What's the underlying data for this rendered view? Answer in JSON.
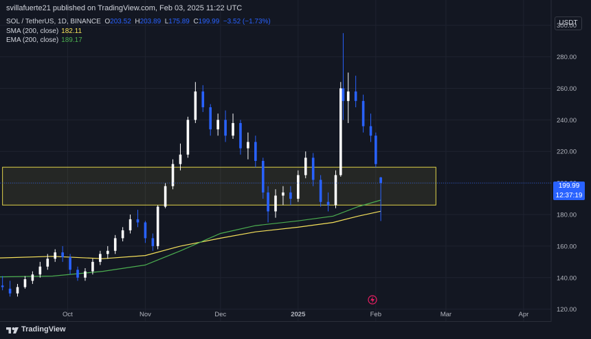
{
  "header": {
    "published": "svillafuerte21 published on TradingView.com, Feb 03, 2025 11:22 UTC"
  },
  "legend": {
    "symbol": "SOL / TetherUS, 1D, BINANCE",
    "open_label": "O",
    "open": "203.52",
    "high_label": "H",
    "high": "203.89",
    "low_label": "L",
    "low": "175.89",
    "close_label": "C",
    "close": "199.99",
    "change": "−3.52 (−1.73%)",
    "sma_label": "SMA (200, close)",
    "sma_value": "182.11",
    "ema_label": "EMA (200, close)",
    "ema_value": "189.17"
  },
  "quote_currency": "USDT",
  "price_tag": {
    "price": "199.99",
    "countdown": "12:37:19"
  },
  "footer": {
    "brand": "TradingView"
  },
  "colors": {
    "bg": "#131722",
    "up": "#ffffff",
    "down": "#2962ff",
    "sma": "#f7e25b",
    "ema": "#4caf50",
    "zone": "#e2d44a",
    "grid": "#1f2330",
    "axis": "#b2b5be"
  },
  "icons": {
    "flash": "lightning-icon",
    "logo": "tradingview-logo-icon"
  },
  "chart_data": {
    "type": "candlestick",
    "y_ticks": [
      120,
      140,
      160,
      180,
      200,
      220,
      240,
      260,
      280,
      300
    ],
    "y_tick_labels": [
      "120.00",
      "140.00",
      "160.00",
      "180.00",
      "200.00",
      "220.00",
      "240.00",
      "260.00",
      "280.00",
      "300.00"
    ],
    "ylim": [
      112,
      316
    ],
    "x_tick_labels": [
      {
        "label": "Oct",
        "date": "2024-10-01"
      },
      {
        "label": "Nov",
        "date": "2024-11-01"
      },
      {
        "label": "Dec",
        "date": "2024-12-01"
      },
      {
        "label": "2025",
        "date": "2025-01-01"
      },
      {
        "label": "Feb",
        "date": "2025-02-01"
      },
      {
        "label": "Mar",
        "date": "2025-03-01"
      },
      {
        "label": "Apr",
        "date": "2025-04-01"
      }
    ],
    "xlim": [
      "2024-09-04",
      "2025-04-12"
    ],
    "horizontal_zone": {
      "low": 186,
      "high": 210
    },
    "last_price": 199.99,
    "candles": [
      {
        "date": "2024-09-05",
        "o": 135,
        "h": 141,
        "l": 132,
        "c": 134
      },
      {
        "date": "2024-09-08",
        "o": 133,
        "h": 138,
        "l": 128,
        "c": 130
      },
      {
        "date": "2024-09-11",
        "o": 130,
        "h": 136,
        "l": 128,
        "c": 134
      },
      {
        "date": "2024-09-14",
        "o": 134,
        "h": 141,
        "l": 133,
        "c": 139
      },
      {
        "date": "2024-09-17",
        "o": 138,
        "h": 144,
        "l": 136,
        "c": 142
      },
      {
        "date": "2024-09-20",
        "o": 142,
        "h": 150,
        "l": 140,
        "c": 147
      },
      {
        "date": "2024-09-23",
        "o": 147,
        "h": 155,
        "l": 145,
        "c": 152
      },
      {
        "date": "2024-09-26",
        "o": 152,
        "h": 158,
        "l": 150,
        "c": 156
      },
      {
        "date": "2024-09-29",
        "o": 156,
        "h": 160,
        "l": 150,
        "c": 153
      },
      {
        "date": "2024-10-02",
        "o": 153,
        "h": 155,
        "l": 142,
        "c": 145
      },
      {
        "date": "2024-10-05",
        "o": 145,
        "h": 147,
        "l": 138,
        "c": 140
      },
      {
        "date": "2024-10-08",
        "o": 140,
        "h": 146,
        "l": 138,
        "c": 144
      },
      {
        "date": "2024-10-11",
        "o": 144,
        "h": 152,
        "l": 142,
        "c": 150
      },
      {
        "date": "2024-10-14",
        "o": 150,
        "h": 157,
        "l": 148,
        "c": 155
      },
      {
        "date": "2024-10-17",
        "o": 155,
        "h": 160,
        "l": 152,
        "c": 157
      },
      {
        "date": "2024-10-20",
        "o": 157,
        "h": 167,
        "l": 155,
        "c": 165
      },
      {
        "date": "2024-10-23",
        "o": 165,
        "h": 172,
        "l": 163,
        "c": 170
      },
      {
        "date": "2024-10-26",
        "o": 170,
        "h": 180,
        "l": 168,
        "c": 177
      },
      {
        "date": "2024-10-29",
        "o": 177,
        "h": 183,
        "l": 172,
        "c": 175
      },
      {
        "date": "2024-11-01",
        "o": 175,
        "h": 176,
        "l": 162,
        "c": 165
      },
      {
        "date": "2024-11-04",
        "o": 165,
        "h": 168,
        "l": 157,
        "c": 160
      },
      {
        "date": "2024-11-06",
        "o": 160,
        "h": 186,
        "l": 158,
        "c": 185
      },
      {
        "date": "2024-11-09",
        "o": 185,
        "h": 200,
        "l": 184,
        "c": 198
      },
      {
        "date": "2024-11-12",
        "o": 198,
        "h": 215,
        "l": 196,
        "c": 212
      },
      {
        "date": "2024-11-15",
        "o": 212,
        "h": 225,
        "l": 208,
        "c": 218
      },
      {
        "date": "2024-11-18",
        "o": 218,
        "h": 242,
        "l": 216,
        "c": 240
      },
      {
        "date": "2024-11-21",
        "o": 240,
        "h": 264,
        "l": 238,
        "c": 258
      },
      {
        "date": "2024-11-24",
        "o": 258,
        "h": 262,
        "l": 245,
        "c": 248
      },
      {
        "date": "2024-11-27",
        "o": 248,
        "h": 250,
        "l": 230,
        "c": 234
      },
      {
        "date": "2024-11-30",
        "o": 234,
        "h": 244,
        "l": 230,
        "c": 240
      },
      {
        "date": "2024-12-03",
        "o": 240,
        "h": 246,
        "l": 226,
        "c": 230
      },
      {
        "date": "2024-12-06",
        "o": 230,
        "h": 244,
        "l": 228,
        "c": 238
      },
      {
        "date": "2024-12-09",
        "o": 238,
        "h": 240,
        "l": 218,
        "c": 222
      },
      {
        "date": "2024-12-12",
        "o": 222,
        "h": 232,
        "l": 215,
        "c": 226
      },
      {
        "date": "2024-12-15",
        "o": 226,
        "h": 230,
        "l": 210,
        "c": 214
      },
      {
        "date": "2024-12-18",
        "o": 214,
        "h": 216,
        "l": 190,
        "c": 194
      },
      {
        "date": "2024-12-20",
        "o": 194,
        "h": 198,
        "l": 175,
        "c": 182
      },
      {
        "date": "2024-12-23",
        "o": 182,
        "h": 196,
        "l": 178,
        "c": 192
      },
      {
        "date": "2024-12-26",
        "o": 192,
        "h": 198,
        "l": 186,
        "c": 194
      },
      {
        "date": "2024-12-29",
        "o": 194,
        "h": 198,
        "l": 186,
        "c": 190
      },
      {
        "date": "2025-01-01",
        "o": 190,
        "h": 208,
        "l": 188,
        "c": 205
      },
      {
        "date": "2025-01-04",
        "o": 205,
        "h": 220,
        "l": 203,
        "c": 216
      },
      {
        "date": "2025-01-07",
        "o": 216,
        "h": 219,
        "l": 198,
        "c": 202
      },
      {
        "date": "2025-01-10",
        "o": 202,
        "h": 205,
        "l": 185,
        "c": 188
      },
      {
        "date": "2025-01-13",
        "o": 188,
        "h": 194,
        "l": 182,
        "c": 186
      },
      {
        "date": "2025-01-16",
        "o": 186,
        "h": 208,
        "l": 184,
        "c": 205
      },
      {
        "date": "2025-01-18",
        "o": 205,
        "h": 264,
        "l": 204,
        "c": 260
      },
      {
        "date": "2025-01-19",
        "o": 260,
        "h": 295,
        "l": 240,
        "c": 252
      },
      {
        "date": "2025-01-21",
        "o": 252,
        "h": 270,
        "l": 238,
        "c": 258
      },
      {
        "date": "2025-01-24",
        "o": 258,
        "h": 268,
        "l": 248,
        "c": 252
      },
      {
        "date": "2025-01-27",
        "o": 252,
        "h": 256,
        "l": 232,
        "c": 236
      },
      {
        "date": "2025-01-30",
        "o": 236,
        "h": 244,
        "l": 226,
        "c": 230
      },
      {
        "date": "2025-02-01",
        "o": 230,
        "h": 232,
        "l": 210,
        "c": 212
      },
      {
        "date": "2025-02-03",
        "o": 203.52,
        "h": 203.89,
        "l": 175.89,
        "c": 199.99
      }
    ],
    "series": [
      {
        "name": "SMA (200, close)",
        "color": "#f7e25b",
        "points": [
          [
            "2024-09-04",
            152.5
          ],
          [
            "2024-09-25",
            153.5
          ],
          [
            "2024-10-15",
            152
          ],
          [
            "2024-11-01",
            154
          ],
          [
            "2024-11-15",
            160
          ],
          [
            "2024-12-01",
            165
          ],
          [
            "2024-12-15",
            169
          ],
          [
            "2025-01-01",
            172
          ],
          [
            "2025-01-15",
            175
          ],
          [
            "2025-01-25",
            179
          ],
          [
            "2025-02-03",
            182.11
          ]
        ]
      },
      {
        "name": "EMA (200, close)",
        "color": "#4caf50",
        "points": [
          [
            "2024-09-04",
            140.5
          ],
          [
            "2024-09-25",
            141
          ],
          [
            "2024-10-15",
            144
          ],
          [
            "2024-11-01",
            148
          ],
          [
            "2024-11-15",
            157
          ],
          [
            "2024-12-01",
            168
          ],
          [
            "2024-12-15",
            173
          ],
          [
            "2025-01-01",
            176
          ],
          [
            "2025-01-15",
            179
          ],
          [
            "2025-01-25",
            185
          ],
          [
            "2025-02-03",
            189.17
          ]
        ]
      }
    ]
  }
}
